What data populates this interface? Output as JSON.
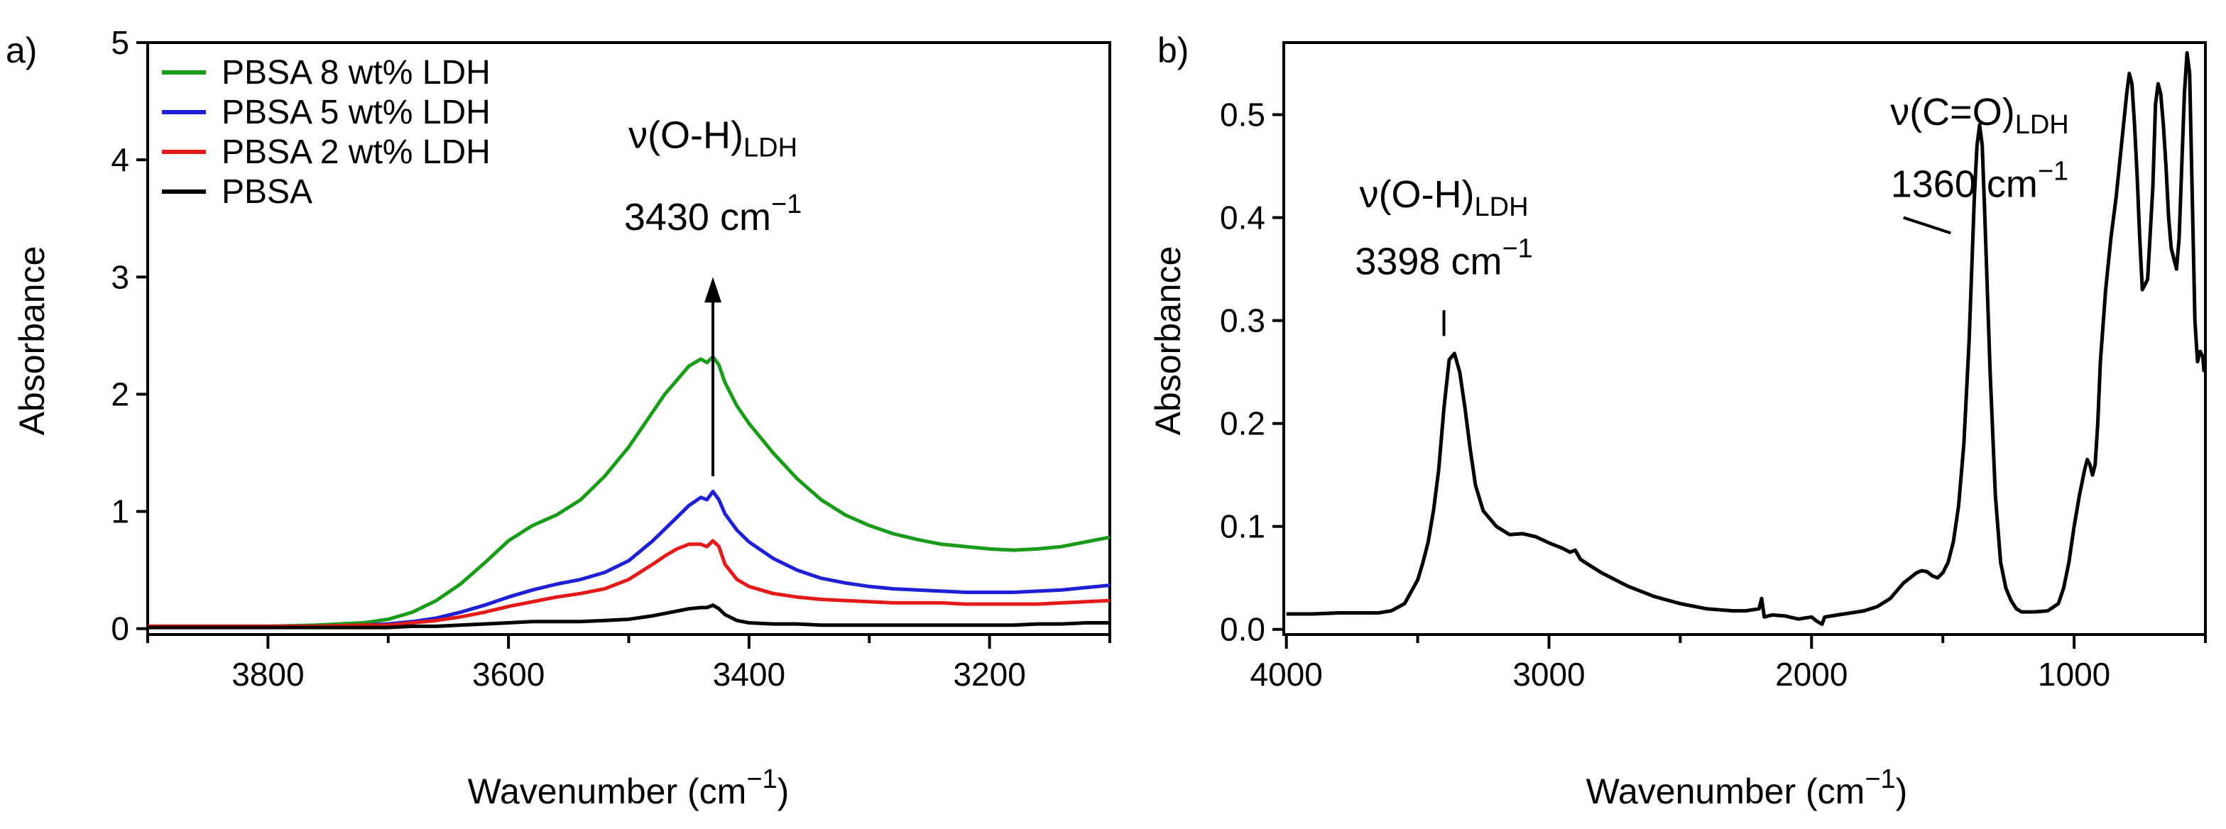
{
  "chart_data": [
    {
      "type": "line",
      "panel_label": "a)",
      "xlabel": "Wavenumber (cm",
      "xlabel_sup": "−1",
      "xlabel_close": ")",
      "ylabel": "Absorbance",
      "xlim": [
        3900,
        3100
      ],
      "ylim": [
        -0.05,
        5.0
      ],
      "xticks": [
        3800,
        3600,
        3400,
        3200
      ],
      "yticks": [
        0,
        1,
        2,
        3,
        4,
        5
      ],
      "legend_position": "top-left",
      "series": [
        {
          "name": "PBSA 8 wt% LDH",
          "color": "#1a9c1a",
          "x": [
            3900,
            3800,
            3760,
            3720,
            3700,
            3680,
            3660,
            3640,
            3620,
            3600,
            3580,
            3560,
            3540,
            3520,
            3500,
            3480,
            3470,
            3460,
            3450,
            3440,
            3435,
            3430,
            3425,
            3420,
            3410,
            3400,
            3380,
            3360,
            3340,
            3320,
            3300,
            3280,
            3260,
            3240,
            3220,
            3200,
            3180,
            3160,
            3140,
            3120,
            3100
          ],
          "values": [
            0.02,
            0.02,
            0.03,
            0.05,
            0.08,
            0.14,
            0.24,
            0.38,
            0.56,
            0.75,
            0.88,
            0.97,
            1.1,
            1.3,
            1.55,
            1.85,
            2.0,
            2.12,
            2.24,
            2.3,
            2.27,
            2.32,
            2.25,
            2.1,
            1.9,
            1.75,
            1.5,
            1.28,
            1.1,
            0.97,
            0.88,
            0.81,
            0.76,
            0.72,
            0.7,
            0.68,
            0.67,
            0.68,
            0.7,
            0.74,
            0.78
          ]
        },
        {
          "name": "PBSA 5 wt% LDH",
          "color": "#1f1fd6",
          "x": [
            3900,
            3800,
            3760,
            3720,
            3700,
            3680,
            3660,
            3640,
            3620,
            3600,
            3580,
            3560,
            3540,
            3520,
            3500,
            3480,
            3470,
            3460,
            3450,
            3440,
            3435,
            3430,
            3425,
            3420,
            3410,
            3400,
            3380,
            3360,
            3340,
            3320,
            3300,
            3280,
            3260,
            3240,
            3220,
            3200,
            3180,
            3160,
            3140,
            3120,
            3100
          ],
          "values": [
            0.02,
            0.02,
            0.02,
            0.03,
            0.04,
            0.06,
            0.09,
            0.14,
            0.2,
            0.27,
            0.33,
            0.38,
            0.42,
            0.48,
            0.58,
            0.75,
            0.85,
            0.95,
            1.05,
            1.12,
            1.1,
            1.17,
            1.1,
            0.98,
            0.84,
            0.74,
            0.6,
            0.5,
            0.43,
            0.39,
            0.36,
            0.34,
            0.33,
            0.32,
            0.31,
            0.31,
            0.31,
            0.32,
            0.33,
            0.35,
            0.37
          ]
        },
        {
          "name": "PBSA 2 wt% LDH",
          "color": "#e41a1a",
          "x": [
            3900,
            3800,
            3760,
            3720,
            3700,
            3680,
            3660,
            3640,
            3620,
            3600,
            3580,
            3560,
            3540,
            3520,
            3500,
            3480,
            3470,
            3460,
            3450,
            3440,
            3435,
            3430,
            3425,
            3420,
            3410,
            3400,
            3380,
            3360,
            3340,
            3320,
            3300,
            3280,
            3260,
            3240,
            3220,
            3200,
            3180,
            3160,
            3140,
            3120,
            3100
          ],
          "values": [
            0.02,
            0.02,
            0.02,
            0.03,
            0.03,
            0.05,
            0.07,
            0.1,
            0.14,
            0.19,
            0.23,
            0.27,
            0.3,
            0.34,
            0.42,
            0.55,
            0.62,
            0.68,
            0.72,
            0.72,
            0.7,
            0.75,
            0.7,
            0.55,
            0.42,
            0.36,
            0.3,
            0.27,
            0.25,
            0.24,
            0.23,
            0.22,
            0.22,
            0.22,
            0.21,
            0.21,
            0.21,
            0.21,
            0.22,
            0.23,
            0.24
          ]
        },
        {
          "name": "PBSA",
          "color": "#000000",
          "x": [
            3900,
            3800,
            3760,
            3720,
            3700,
            3680,
            3660,
            3640,
            3620,
            3600,
            3580,
            3560,
            3540,
            3520,
            3500,
            3480,
            3470,
            3460,
            3450,
            3440,
            3435,
            3430,
            3425,
            3420,
            3410,
            3400,
            3380,
            3360,
            3340,
            3320,
            3300,
            3280,
            3260,
            3240,
            3220,
            3200,
            3180,
            3160,
            3140,
            3120,
            3100
          ],
          "values": [
            0.01,
            0.01,
            0.01,
            0.01,
            0.01,
            0.02,
            0.02,
            0.03,
            0.04,
            0.05,
            0.06,
            0.06,
            0.06,
            0.07,
            0.08,
            0.11,
            0.13,
            0.15,
            0.17,
            0.18,
            0.18,
            0.2,
            0.17,
            0.12,
            0.07,
            0.05,
            0.04,
            0.04,
            0.03,
            0.03,
            0.03,
            0.03,
            0.03,
            0.03,
            0.03,
            0.03,
            0.03,
            0.04,
            0.04,
            0.05,
            0.05
          ]
        }
      ],
      "annotations": [
        {
          "text": "ν(O-H)",
          "sub": "LDH",
          "x": 3430,
          "y": 4.1
        },
        {
          "text": "3430 cm",
          "sup": "−1",
          "x": 3430,
          "y": 3.4
        },
        {
          "type": "arrow",
          "x": 3430,
          "y_from": 1.3,
          "y_to": 3.0
        }
      ]
    },
    {
      "type": "line",
      "panel_label": "b)",
      "xlabel": "Wavenumber (cm",
      "xlabel_sup": "−1",
      "xlabel_close": ")",
      "ylabel": "Absorbance",
      "xlim": [
        4010,
        500
      ],
      "ylim": [
        -0.005,
        0.57
      ],
      "xticks": [
        4000,
        3000,
        2000,
        1000
      ],
      "yticks": [
        0.0,
        0.1,
        0.2,
        0.3,
        0.4,
        0.5
      ],
      "series": [
        {
          "name": "LDH",
          "color": "#000000",
          "x": [
            4000,
            3900,
            3800,
            3700,
            3650,
            3600,
            3550,
            3500,
            3480,
            3460,
            3440,
            3420,
            3400,
            3380,
            3360,
            3340,
            3320,
            3300,
            3280,
            3250,
            3200,
            3150,
            3100,
            3050,
            3000,
            2950,
            2920,
            2900,
            2880,
            2850,
            2800,
            2700,
            2600,
            2500,
            2400,
            2300,
            2250,
            2200,
            2190,
            2180,
            2150,
            2100,
            2050,
            2000,
            1980,
            1960,
            1950,
            1900,
            1850,
            1800,
            1750,
            1700,
            1650,
            1600,
            1580,
            1560,
            1540,
            1520,
            1500,
            1480,
            1460,
            1440,
            1420,
            1400,
            1380,
            1370,
            1360,
            1350,
            1340,
            1320,
            1300,
            1280,
            1260,
            1240,
            1220,
            1200,
            1180,
            1150,
            1100,
            1060,
            1040,
            1020,
            1000,
            980,
            960,
            950,
            940,
            930,
            920,
            910,
            900,
            880,
            860,
            840,
            820,
            800,
            790,
            780,
            770,
            760,
            750,
            740,
            720,
            700,
            690,
            680,
            670,
            660,
            650,
            640,
            630,
            620,
            610,
            600,
            590,
            580,
            570,
            560,
            550,
            540,
            530,
            520,
            510,
            505
          ],
          "values": [
            0.015,
            0.015,
            0.016,
            0.016,
            0.016,
            0.018,
            0.025,
            0.048,
            0.065,
            0.085,
            0.115,
            0.155,
            0.215,
            0.262,
            0.268,
            0.25,
            0.215,
            0.175,
            0.14,
            0.115,
            0.1,
            0.092,
            0.093,
            0.09,
            0.084,
            0.079,
            0.075,
            0.077,
            0.068,
            0.063,
            0.055,
            0.042,
            0.032,
            0.025,
            0.02,
            0.018,
            0.018,
            0.02,
            0.03,
            0.012,
            0.014,
            0.013,
            0.01,
            0.012,
            0.008,
            0.005,
            0.012,
            0.014,
            0.016,
            0.018,
            0.022,
            0.03,
            0.045,
            0.055,
            0.057,
            0.056,
            0.052,
            0.05,
            0.055,
            0.065,
            0.085,
            0.12,
            0.18,
            0.28,
            0.42,
            0.47,
            0.49,
            0.47,
            0.4,
            0.25,
            0.13,
            0.065,
            0.04,
            0.028,
            0.02,
            0.017,
            0.017,
            0.017,
            0.018,
            0.025,
            0.04,
            0.065,
            0.1,
            0.13,
            0.155,
            0.165,
            0.16,
            0.15,
            0.16,
            0.2,
            0.26,
            0.33,
            0.38,
            0.42,
            0.47,
            0.52,
            0.54,
            0.53,
            0.49,
            0.44,
            0.38,
            0.33,
            0.34,
            0.43,
            0.51,
            0.53,
            0.52,
            0.49,
            0.45,
            0.4,
            0.37,
            0.36,
            0.35,
            0.38,
            0.45,
            0.52,
            0.56,
            0.54,
            0.42,
            0.3,
            0.26,
            0.27,
            0.265,
            0.25
          ]
        }
      ],
      "annotations": [
        {
          "text": "ν(O-H)",
          "sub": "LDH",
          "x": 3400,
          "y": 0.41
        },
        {
          "text": "3398 cm",
          "sup": "−1",
          "x": 3400,
          "y": 0.345
        },
        {
          "type": "tick",
          "x": 3400,
          "y_from": 0.285,
          "y_to": 0.31
        },
        {
          "text": "ν(C=O)",
          "sub": "LDH",
          "x": 1360,
          "y": 0.49
        },
        {
          "text": "1360 cm",
          "sup": "−1",
          "x": 1360,
          "y": 0.42
        },
        {
          "type": "line",
          "x1": 1650,
          "y1": 0.4,
          "x2": 1470,
          "y2": 0.385
        }
      ]
    }
  ]
}
